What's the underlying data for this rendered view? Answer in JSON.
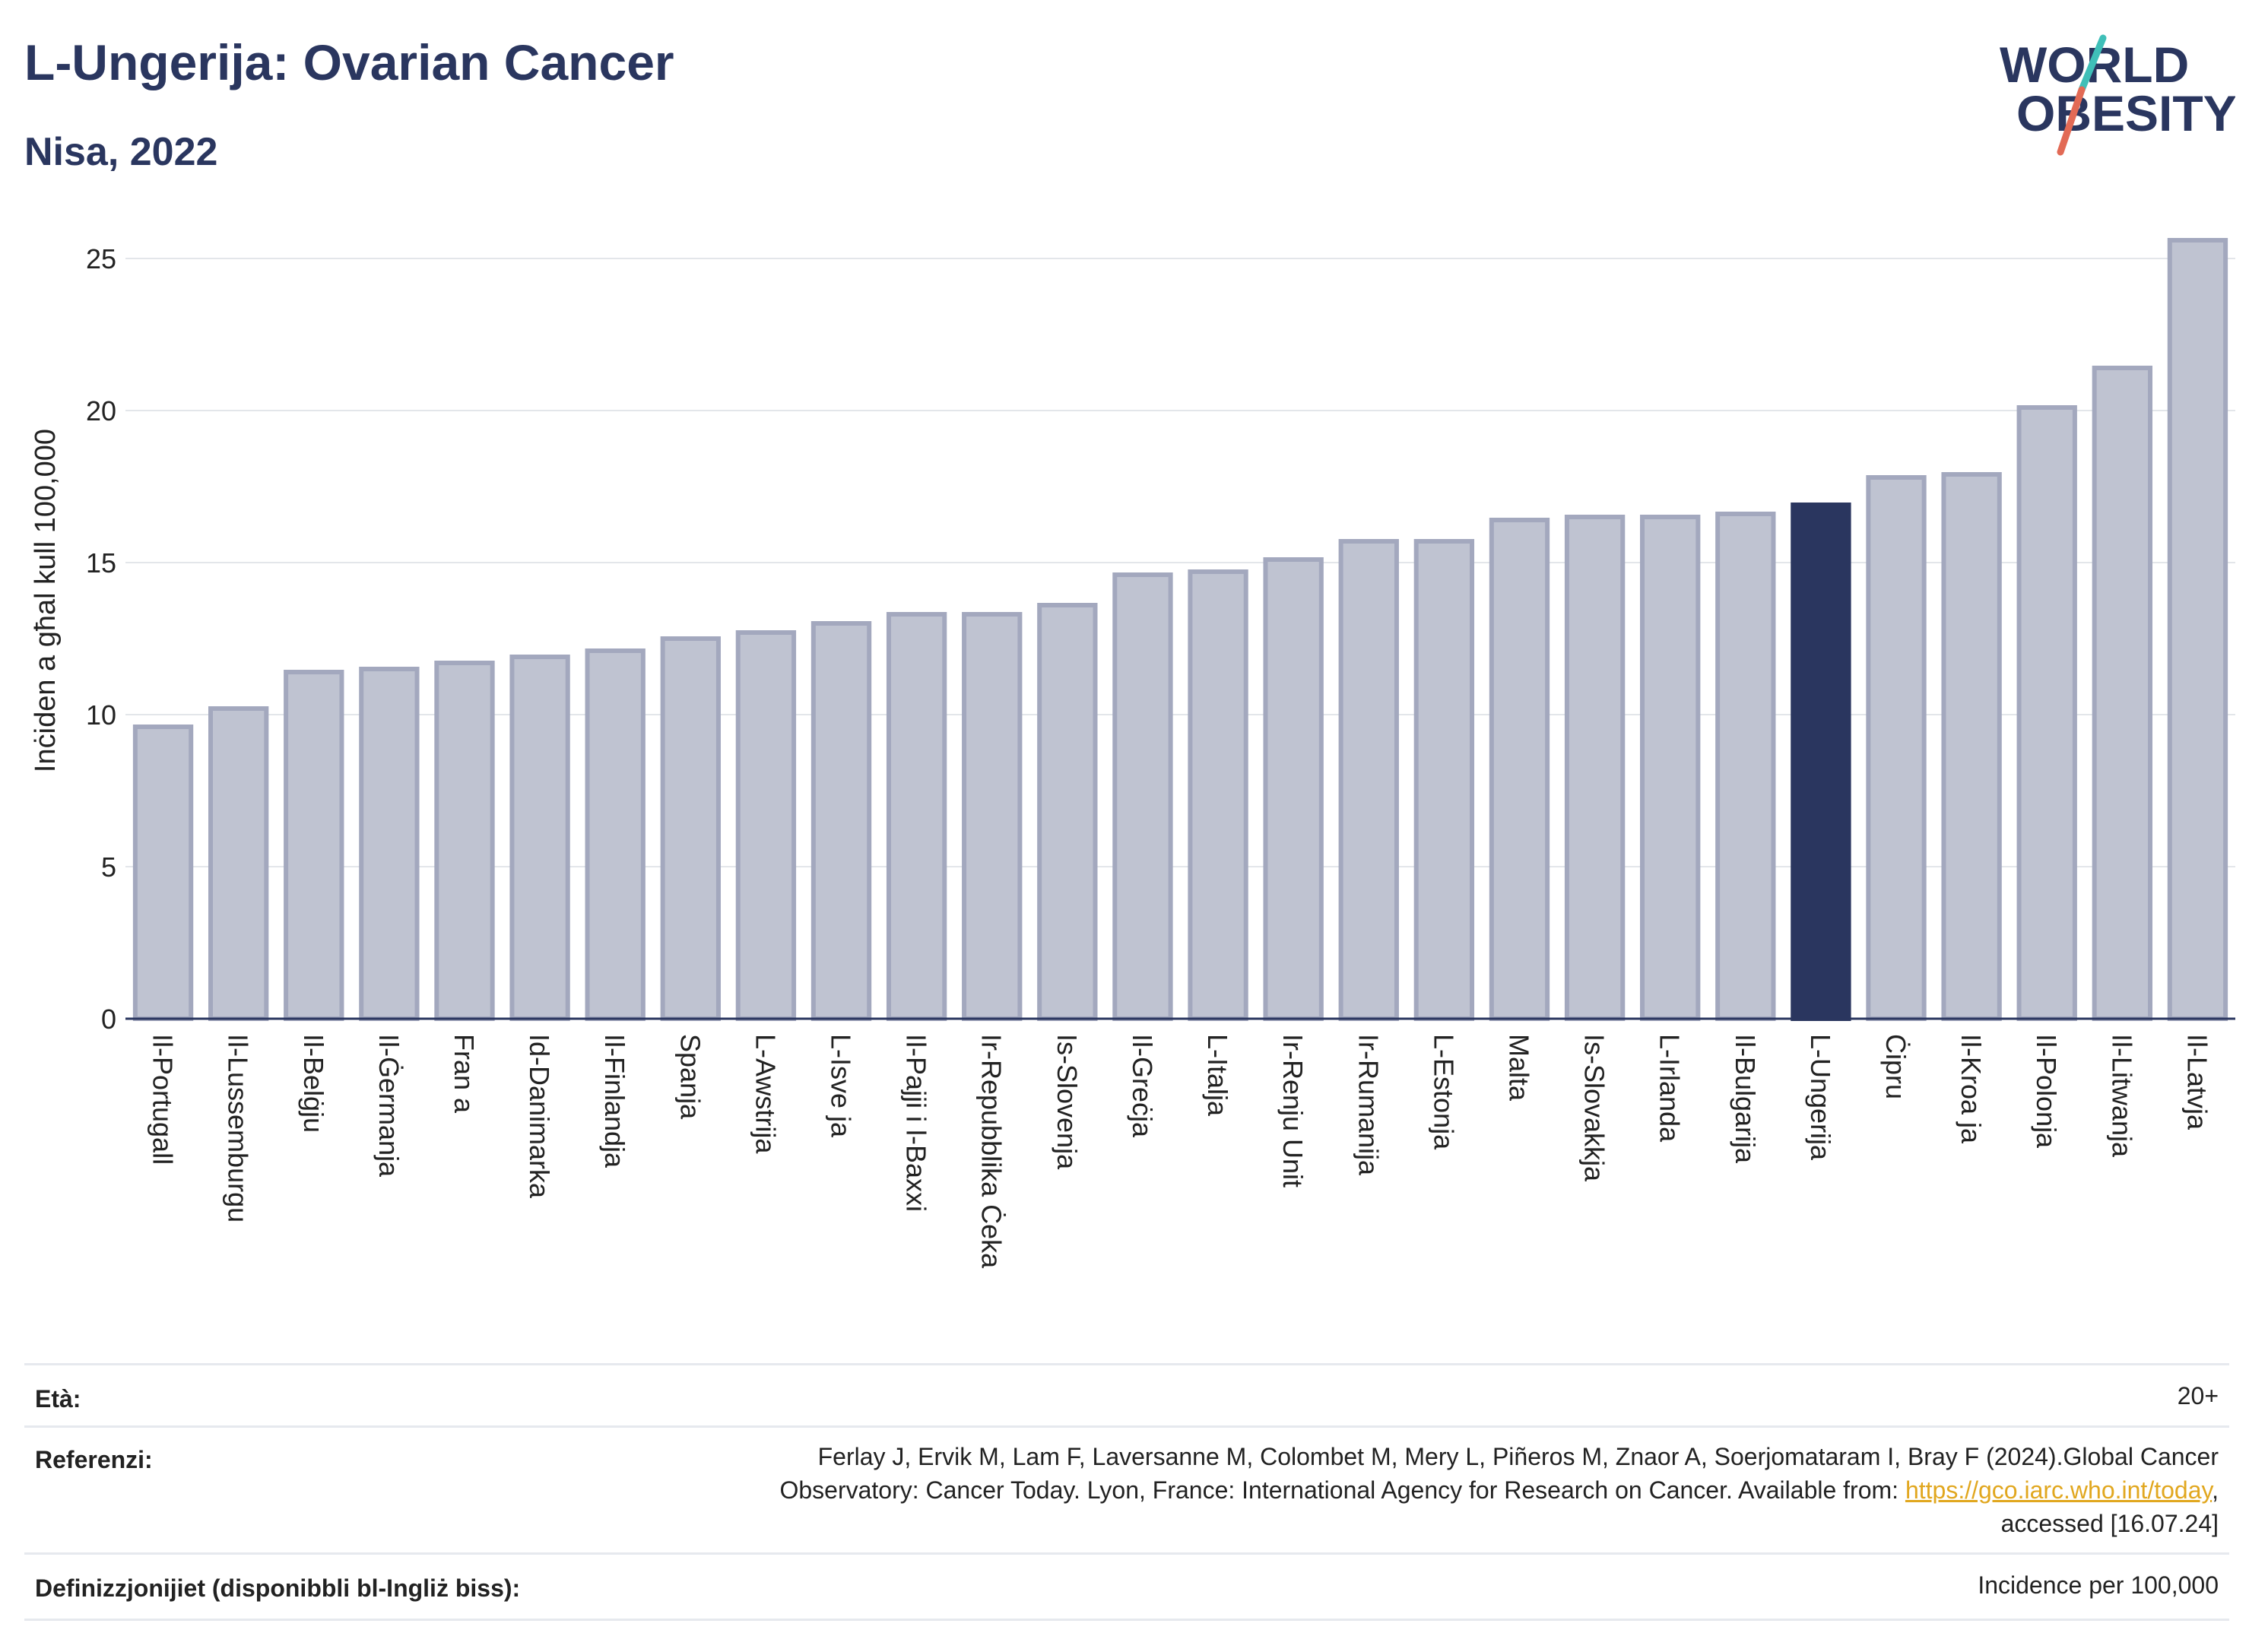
{
  "header": {
    "title": "L-Ungerija: Ovarian Cancer",
    "subtitle": "Nisa, 2022"
  },
  "logo": {
    "line1": "WORLD",
    "line2": "OBESITY",
    "accent_teal": "#3fbfb8",
    "accent_red": "#e26a55"
  },
  "chart_data": {
    "type": "bar",
    "ylabel": "Inċiden  a għal kull 100,000",
    "ylim": [
      0,
      26
    ],
    "yticks": [
      0,
      5,
      10,
      15,
      20,
      25
    ],
    "grid": true,
    "categories": [
      "Il-Portugall",
      "Il-Lussemburgu",
      "Il-Belġju",
      "Il-Ġermanja",
      "Fran  a",
      "Id-Danimarka",
      "Il-Finlandja",
      "Spanja",
      "L-Awstrija",
      "L-Isve  ja",
      "Il-Pajji  i l-Baxxi",
      "Ir-Repubblika Ċeka",
      "Is-Slovenja",
      "Il-Greċja",
      "L-Italja",
      "Ir-Renju Unit",
      "Ir-Rumanija",
      "L-Estonja",
      "Malta",
      "Is-Slovakkja",
      "L-Irlanda",
      "Il-Bulgarija",
      "L-Ungerija",
      "Ċipru",
      "Il-Kroa  ja",
      "Il-Polonja",
      "Il-Litwanja",
      "Il-Latvja"
    ],
    "values": [
      9.6,
      10.2,
      11.4,
      11.5,
      11.7,
      11.9,
      12.1,
      12.5,
      12.7,
      13.0,
      13.3,
      13.3,
      13.6,
      14.6,
      14.7,
      15.1,
      15.7,
      15.7,
      16.4,
      16.5,
      16.5,
      16.6,
      16.9,
      17.8,
      17.9,
      20.1,
      21.4,
      25.6
    ],
    "highlight": "L-Ungerija",
    "colors": {
      "bar": "#bfc3d1",
      "bar_border": "#a3a8be",
      "highlight": "#2a365f",
      "grid": "#e3e6ea",
      "axis": "#2a365f"
    }
  },
  "info": {
    "age_label": "Età:",
    "age_value": "20+",
    "ref_label": "Referenzi:",
    "ref_line1": "Ferlay J, Ervik M, Lam F, Laversanne M, Colombet M, Mery L, Piñeros M, Znaor A, Soerjomataram I, Bray F (2024).Global Cancer",
    "ref_line2_prefix": "Observatory: Cancer Today. Lyon, France: International Agency for Research on Cancer. Available from: ",
    "ref_link": "https://gco.iarc.who.int/today",
    "ref_line2_suffix": ",",
    "ref_line3": "accessed [16.07.24]",
    "def_label": "Definizzjonijiet (disponibbli bl-Ingliż biss):",
    "def_value": "Incidence per 100,000"
  }
}
